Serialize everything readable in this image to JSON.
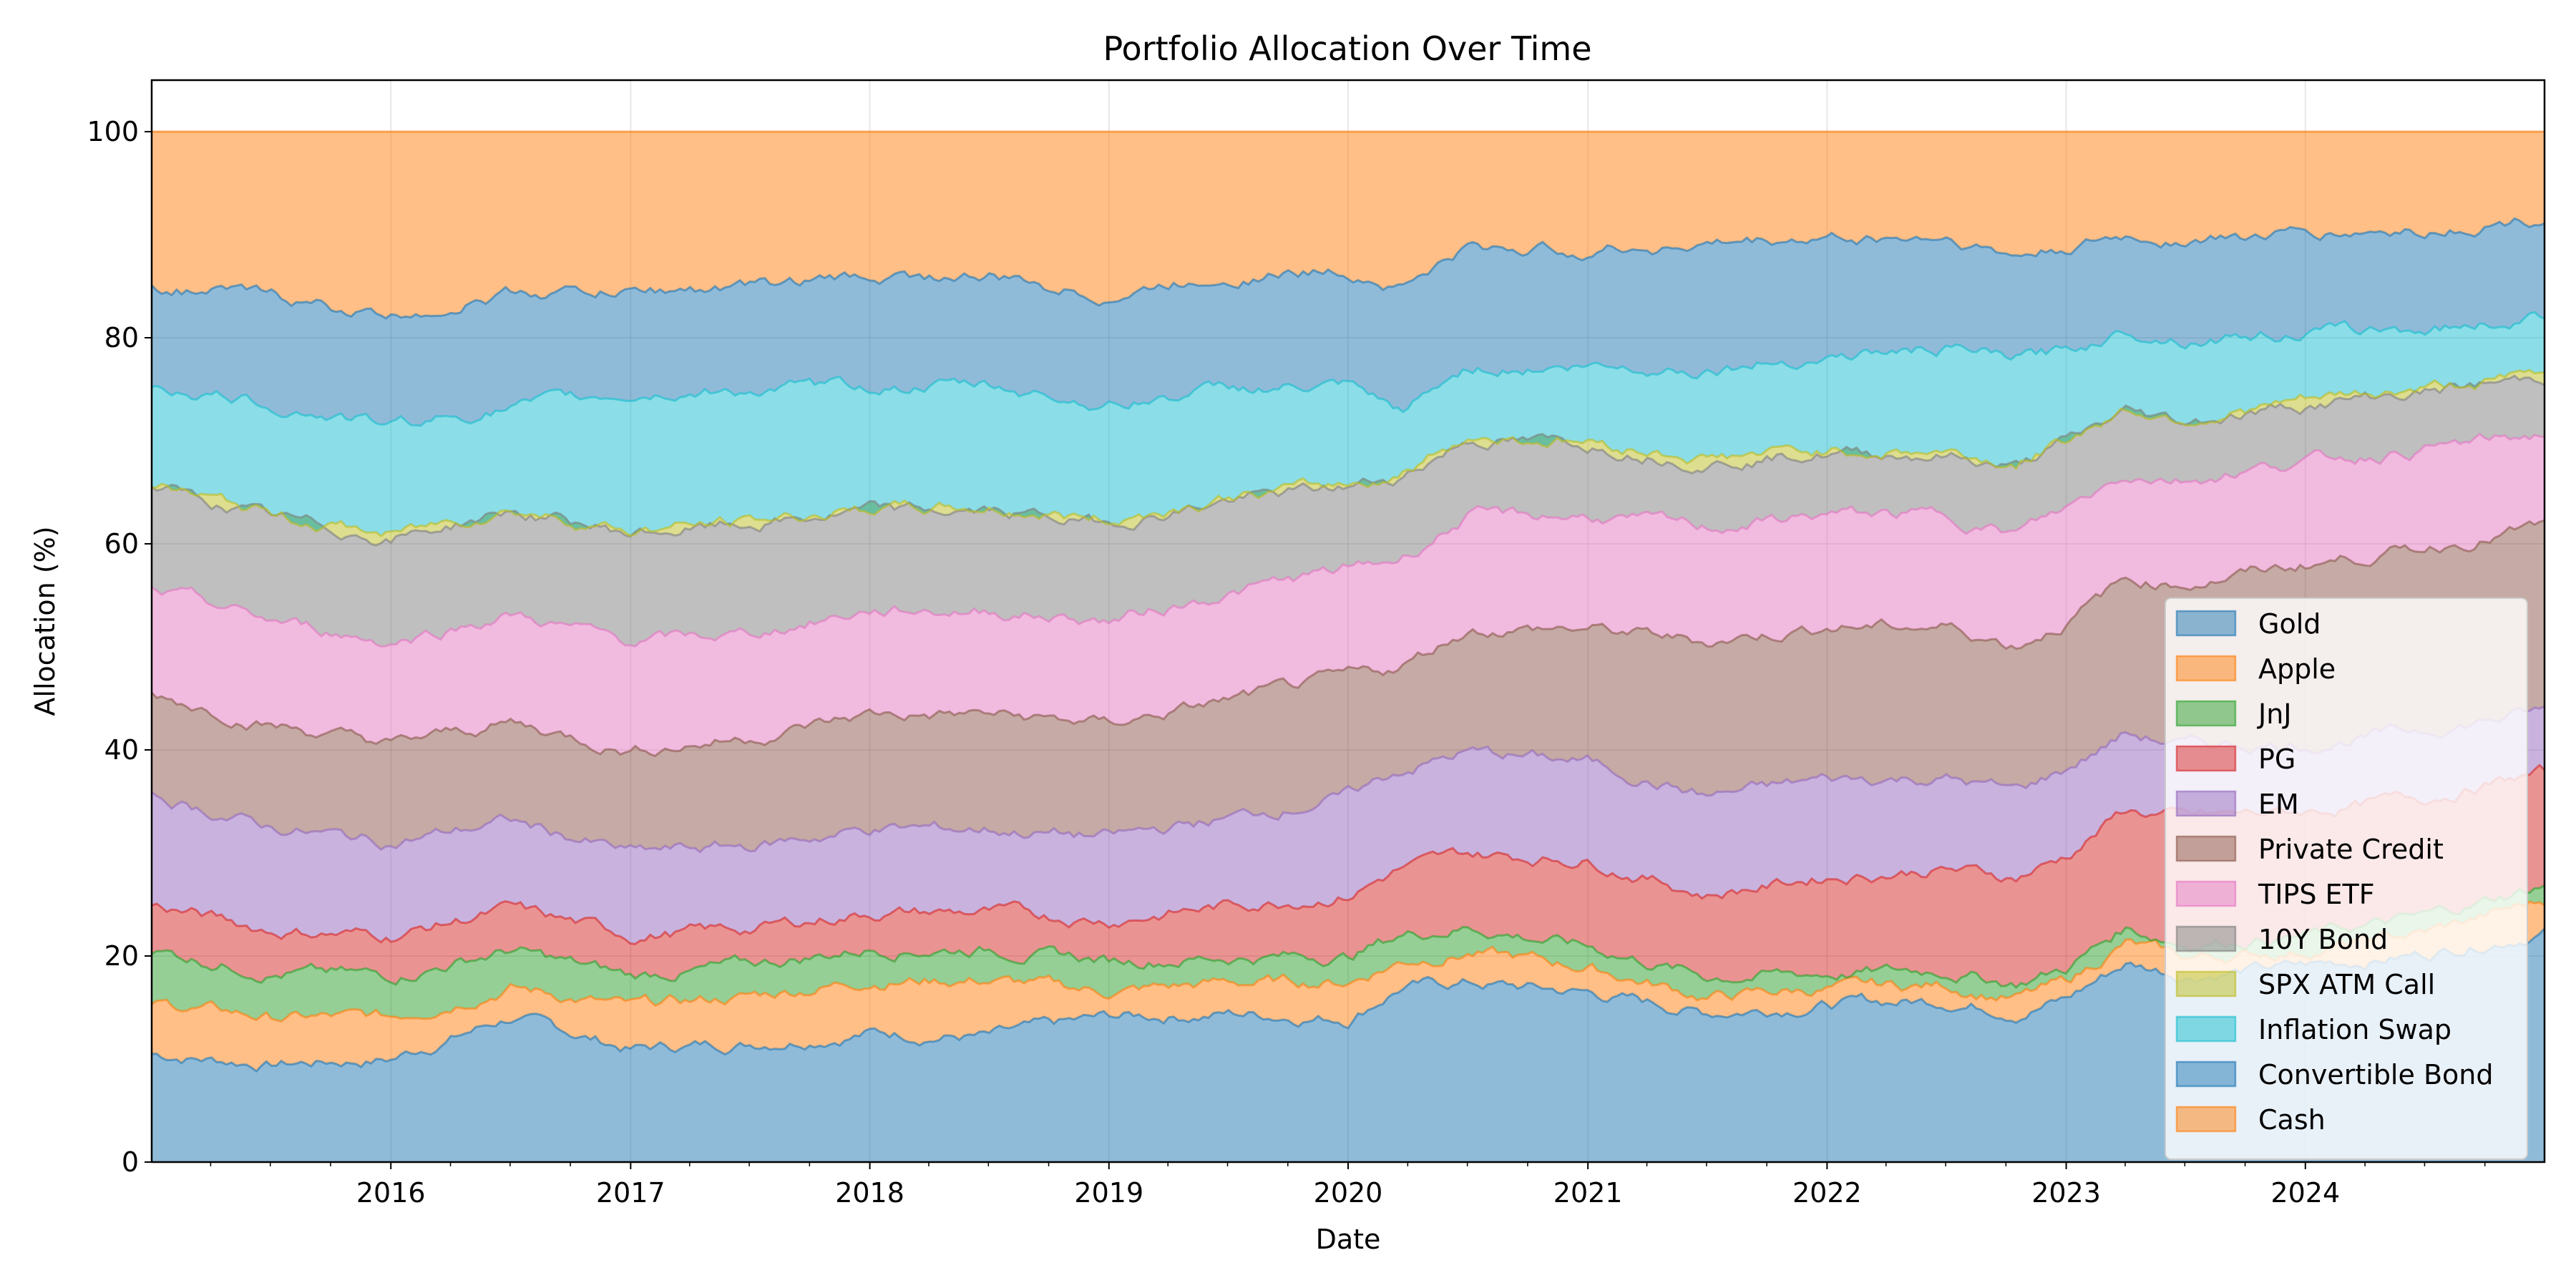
{
  "chart_data": {
    "type": "area",
    "stacked": true,
    "title": "Portfolio Allocation Over Time",
    "xlabel": "Date",
    "ylabel": "Allocation (%)",
    "xlim": [
      "2015-01-01",
      "2024-12-31"
    ],
    "ylim": [
      0,
      105
    ],
    "x_ticks": [
      "2016",
      "2017",
      "2018",
      "2019",
      "2020",
      "2021",
      "2022",
      "2023",
      "2024"
    ],
    "y_ticks": [
      "0",
      "20",
      "40",
      "60",
      "80",
      "100"
    ],
    "grid": true,
    "legend_position": "lower-right",
    "x": [
      "2015-01-01",
      "2015-07-01",
      "2016-01-01",
      "2016-07-01",
      "2017-01-01",
      "2017-07-01",
      "2018-01-01",
      "2018-07-01",
      "2019-01-01",
      "2019-07-01",
      "2020-01-01",
      "2020-03-20",
      "2020-07-01",
      "2021-01-01",
      "2021-07-01",
      "2022-01-01",
      "2022-07-01",
      "2022-10-15",
      "2023-01-01",
      "2023-04-01",
      "2023-07-01",
      "2024-01-01",
      "2024-07-01",
      "2024-12-31"
    ],
    "series": [
      {
        "name": "Gold",
        "color": "#1f77b4",
        "values": [
          10.5,
          9.5,
          10.0,
          14.0,
          11.0,
          11.5,
          12.5,
          12.0,
          14.0,
          14.5,
          14.0,
          17.0,
          17.5,
          16.5,
          14.5,
          15.5,
          16.0,
          15.0,
          16.0,
          19.5,
          18.0,
          19.0,
          20.0,
          22.5
        ]
      },
      {
        "name": "Apple",
        "color": "#ff7f0e",
        "values": [
          5.0,
          4.5,
          4.0,
          3.0,
          4.0,
          4.5,
          5.0,
          5.5,
          2.5,
          3.0,
          3.5,
          2.5,
          3.0,
          2.5,
          1.5,
          1.5,
          1.5,
          1.2,
          1.5,
          2.0,
          1.5,
          1.5,
          2.0,
          3.0
        ]
      },
      {
        "name": "JnJ",
        "color": "#2ca02c",
        "values": [
          5.0,
          4.5,
          4.0,
          3.5,
          3.0,
          3.0,
          3.0,
          3.0,
          3.0,
          2.5,
          2.5,
          2.5,
          2.5,
          2.0,
          2.0,
          1.5,
          1.5,
          1.5,
          1.5,
          1.5,
          1.5,
          1.5,
          1.5,
          1.5
        ]
      },
      {
        "name": "PG",
        "color": "#d62728",
        "values": [
          4.5,
          4.0,
          4.0,
          4.0,
          4.0,
          3.5,
          3.5,
          3.5,
          4.0,
          5.0,
          6.0,
          6.5,
          7.0,
          8.5,
          8.0,
          9.5,
          10.0,
          10.5,
          11.0,
          11.5,
          12.0,
          12.0,
          11.5,
          11.0
        ]
      },
      {
        "name": "EM",
        "color": "#9467bd",
        "values": [
          10.5,
          10.0,
          9.0,
          8.5,
          8.0,
          8.0,
          8.0,
          8.0,
          8.0,
          8.5,
          9.5,
          9.5,
          10.0,
          9.5,
          9.5,
          9.5,
          9.0,
          8.5,
          8.5,
          7.5,
          7.0,
          6.5,
          6.5,
          6.0
        ]
      },
      {
        "name": "Private Credit",
        "color": "#8c564b",
        "values": [
          10.0,
          10.0,
          9.5,
          9.5,
          10.0,
          10.5,
          11.0,
          11.0,
          11.0,
          11.5,
          11.5,
          10.0,
          12.0,
          13.0,
          15.0,
          15.0,
          15.0,
          14.5,
          14.5,
          15.0,
          15.5,
          17.5,
          17.5,
          18.0
        ]
      },
      {
        "name": "TIPS ETF",
        "color": "#e377c2",
        "values": [
          10.0,
          10.0,
          10.0,
          10.5,
          10.5,
          10.0,
          10.0,
          10.0,
          10.0,
          10.5,
          10.5,
          10.5,
          11.0,
          11.0,
          11.0,
          11.0,
          11.0,
          11.0,
          11.0,
          10.5,
          10.0,
          10.0,
          9.5,
          9.0
        ]
      },
      {
        "name": "10Y Bond",
        "color": "#7f7f7f",
        "values": [
          10.0,
          10.0,
          10.0,
          10.0,
          10.5,
          10.5,
          9.5,
          9.5,
          9.5,
          9.0,
          8.0,
          8.0,
          7.5,
          7.0,
          6.5,
          6.0,
          6.0,
          6.5,
          6.5,
          6.0,
          5.5,
          5.5,
          5.5,
          5.5
        ]
      },
      {
        "name": "SPX ATM Call",
        "color": "#bcbd22",
        "values": [
          0.3,
          0.3,
          0.3,
          0.3,
          0.3,
          0.3,
          0.3,
          0.3,
          0.3,
          0.3,
          0.3,
          0.3,
          0.3,
          0.3,
          0.3,
          0.3,
          0.3,
          0.3,
          0.3,
          0.3,
          0.3,
          0.3,
          0.3,
          0.3
        ]
      },
      {
        "name": "Inflation Swap",
        "color": "#17becf",
        "values": [
          9.7,
          10.7,
          10.7,
          9.7,
          13.2,
          12.7,
          11.7,
          11.7,
          11.2,
          10.7,
          9.2,
          5.7,
          6.7,
          7.2,
          8.7,
          9.2,
          10.2,
          10.5,
          8.7,
          7.7,
          7.7,
          6.7,
          5.7,
          5.7
        ]
      },
      {
        "name": "Convertible Bond",
        "color": "#1f77b4",
        "values": [
          9.5,
          10.5,
          10.5,
          11.0,
          10.0,
          10.0,
          10.5,
          10.5,
          10.5,
          11.0,
          11.5,
          12.5,
          11.5,
          11.5,
          12.0,
          11.5,
          11.0,
          10.0,
          10.0,
          9.0,
          9.5,
          9.5,
          9.5,
          9.5
        ]
      },
      {
        "name": "Cash",
        "color": "#ff7f0e",
        "values": [
          15.0,
          16.0,
          18.0,
          15.7,
          15.5,
          15.0,
          14.0,
          14.0,
          16.0,
          14.0,
          13.5,
          15.0,
          11.5,
          11.5,
          11.0,
          10.5,
          10.5,
          12.5,
          11.5,
          10.5,
          10.3,
          10.0,
          9.5,
          8.5
        ]
      }
    ]
  }
}
